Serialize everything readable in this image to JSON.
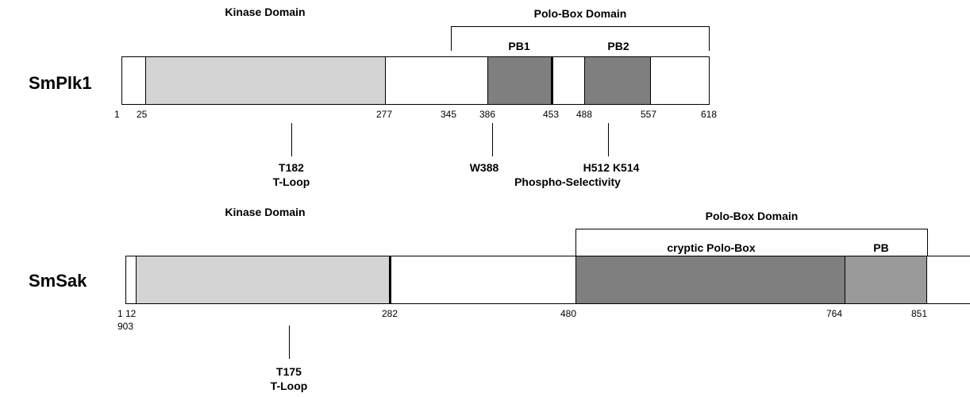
{
  "plk1": {
    "name": "SmPlk1",
    "kinase_label": "Kinase Domain",
    "polobox_label": "Polo-Box Domain",
    "pb1_label": "PB1",
    "pb2_label": "PB2",
    "ticks": [
      "1",
      "25",
      "277",
      "345",
      "386",
      "453",
      "488",
      "557",
      "618"
    ],
    "t182": "T182",
    "tloop": "T-Loop",
    "w388": "W388",
    "h512": "H512 K514",
    "phospho": "Phospho-Selectivity",
    "colors": {
      "kinase": "#d4d4d4",
      "pb": "#7f7f7f"
    }
  },
  "sak": {
    "name": "SmSak",
    "kinase_label": "Kinase Domain",
    "polobox_label": "Polo-Box Domain",
    "cryptic_label": "cryptic Polo-Box",
    "pb_label": "PB",
    "ticks": [
      "1",
      "12",
      "282",
      "480",
      "764",
      "851"
    ],
    "tick_extra": "903",
    "t175": "T175",
    "tloop": "T-Loop",
    "colors": {
      "kinase": "#d4d4d4",
      "cryptic": "#7f7f7f",
      "pb": "#9a9a9a"
    }
  }
}
